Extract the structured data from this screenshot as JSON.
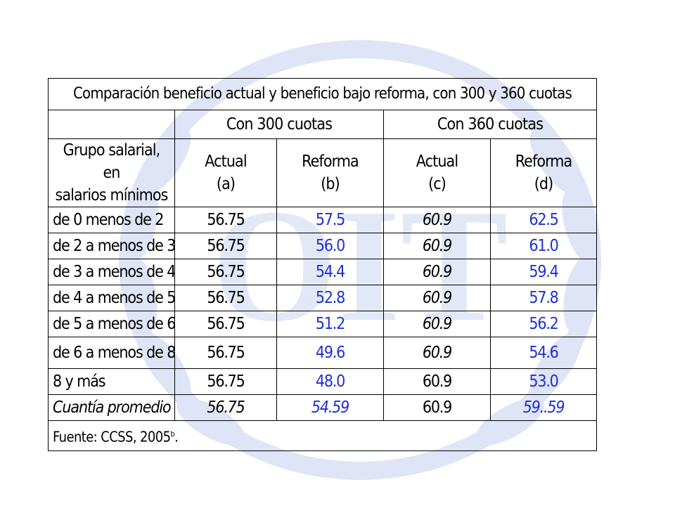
{
  "table": {
    "title": "Comparación beneficio actual y beneficio bajo reforma, con 300 y 360 cuotas",
    "groups": [
      "Con 300 cuotas",
      "Con 360 cuotas"
    ],
    "first_header": {
      "line1": "Grupo salarial, en",
      "line2": "salarios mínimos"
    },
    "col_headers": [
      {
        "line1": "Actual",
        "line2": "(a)"
      },
      {
        "line1": "Reforma",
        "line2": "(b)"
      },
      {
        "line1": "Actual",
        "line2": "(c)"
      },
      {
        "line1": "Reforma",
        "line2": "(d)"
      }
    ],
    "rows": [
      {
        "label": "de 0 menos de 2",
        "a": "56.75",
        "b": "57.5",
        "c": "60.9",
        "d": "62.5"
      },
      {
        "label": "de 2 a menos de 3",
        "a": "56.75",
        "b": "56.0",
        "c": "60.9",
        "d": "61.0"
      },
      {
        "label": "de 3 a menos de 4",
        "a": "56.75",
        "b": "54.4",
        "c": "60.9",
        "d": "59.4"
      },
      {
        "label": "de 4 a menos de 5",
        "a": "56.75",
        "b": "52.8",
        "c": "60.9",
        "d": "57.8"
      },
      {
        "label": "de 5 a menos de 6",
        "a": "56.75",
        "b": "51.2",
        "c": "60.9",
        "d": "56.2"
      },
      {
        "label": "de 6 a menos de 8",
        "a": "56.75",
        "b": "49.6",
        "c": "60.9",
        "d": "54.6"
      },
      {
        "label": "8 y más",
        "a": "56.75",
        "b": "48.0",
        "c": "60.9",
        "d": "53.0"
      },
      {
        "label": "Cuantía promedio",
        "a": "56.75",
        "b": "54.59",
        "c": "60.9",
        "d": "59..59"
      }
    ],
    "source": {
      "text": "Fuente: CCSS, 2005",
      "sup": "b",
      "end": "."
    }
  },
  "colors": {
    "text": "#000000",
    "reform_values": "#1f2fd6",
    "watermark": "#dfe4f6"
  },
  "watermark": {
    "text": "OIT",
    "icon": "un-laurel-emblem-icon"
  }
}
